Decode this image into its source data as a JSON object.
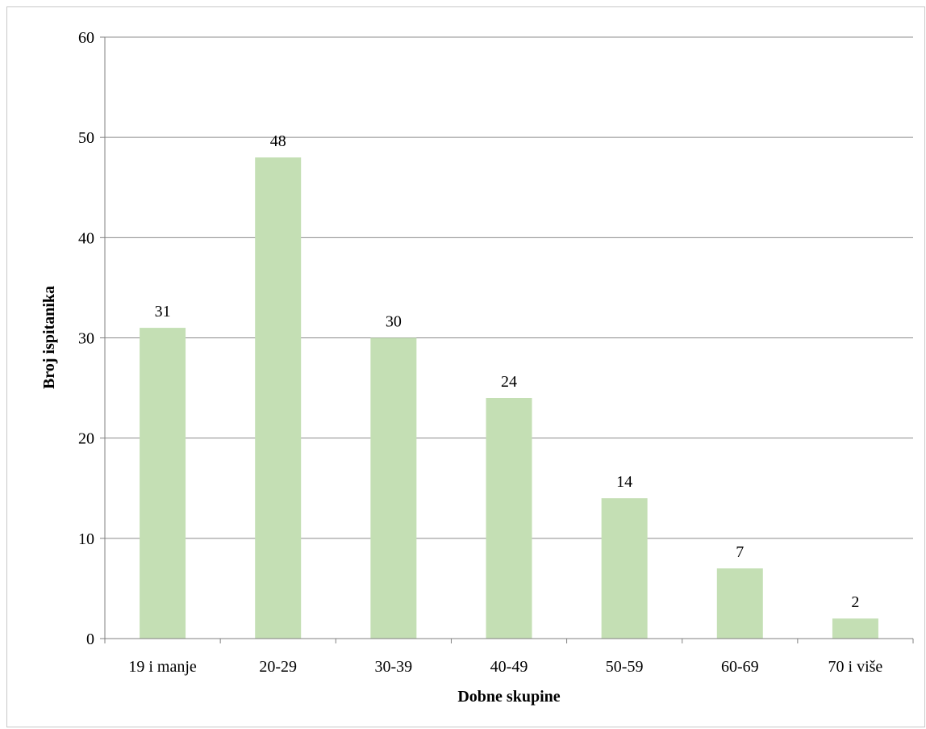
{
  "chart_data": {
    "type": "bar",
    "title": "",
    "xlabel": "Dobne skupine",
    "ylabel": "Broj ispitanika",
    "categories": [
      "19 i manje",
      "20-29",
      "30-39",
      "40-49",
      "50-59",
      "60-69",
      "70 i više"
    ],
    "values": [
      31,
      48,
      30,
      24,
      14,
      7,
      2
    ],
    "ylim": [
      0,
      60
    ],
    "yticks": [
      "0",
      "10",
      "20",
      "30",
      "40",
      "50",
      "60"
    ],
    "grid": true,
    "legend": "none",
    "bar_color": "#c4dfb4",
    "gridline_color": "#8c8c8c",
    "axis_color": "#808080"
  }
}
